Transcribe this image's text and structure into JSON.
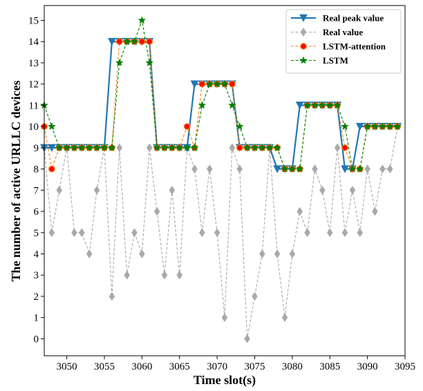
{
  "chart_data": {
    "type": "line",
    "xlabel": "Time slot(s)",
    "ylabel": "The number of active URLLC devices",
    "xlim": [
      3047,
      3095
    ],
    "ylim": [
      -0.8,
      15.7
    ],
    "xticks": [
      3050,
      3055,
      3060,
      3065,
      3070,
      3075,
      3080,
      3085,
      3090,
      3095
    ],
    "yticks": [
      0,
      1,
      2,
      3,
      4,
      5,
      6,
      7,
      8,
      9,
      10,
      11,
      12,
      13,
      14,
      15
    ],
    "grid": false,
    "legend_position": "top-right",
    "x": [
      3047,
      3048,
      3049,
      3050,
      3051,
      3052,
      3053,
      3054,
      3055,
      3056,
      3057,
      3058,
      3059,
      3060,
      3061,
      3062,
      3063,
      3064,
      3065,
      3066,
      3067,
      3068,
      3069,
      3070,
      3071,
      3072,
      3073,
      3074,
      3075,
      3076,
      3077,
      3078,
      3079,
      3080,
      3081,
      3082,
      3083,
      3084,
      3085,
      3086,
      3087,
      3088,
      3089,
      3090,
      3091,
      3092,
      3093,
      3094
    ],
    "series": [
      {
        "name": "Real peak value",
        "color": "#1f77b4",
        "marker": "triangle-down",
        "linestyle": "solid",
        "values": [
          9,
          9,
          9,
          9,
          9,
          9,
          9,
          9,
          9,
          14,
          14,
          14,
          14,
          14,
          14,
          9,
          9,
          9,
          9,
          9,
          12,
          12,
          12,
          12,
          12,
          12,
          9,
          9,
          9,
          9,
          9,
          8,
          8,
          8,
          11,
          11,
          11,
          11,
          11,
          11,
          8,
          8,
          10,
          10,
          10,
          10,
          10,
          10
        ]
      },
      {
        "name": "Real value",
        "color": "#a9a9a9",
        "marker": "diamond",
        "linestyle": "dashed",
        "values": [
          9,
          5,
          7,
          9,
          5,
          5,
          4,
          7,
          9,
          2,
          9,
          3,
          5,
          4,
          9,
          6,
          3,
          7,
          3,
          9,
          8,
          5,
          8,
          5,
          1,
          9,
          8,
          0,
          2,
          4,
          9,
          4,
          1,
          4,
          6,
          5,
          8,
          7,
          5,
          9,
          5,
          7,
          5,
          8,
          6,
          8,
          8,
          10
        ]
      },
      {
        "name": "LSTM-attention",
        "color": "#ff7f0e",
        "marker": "circle",
        "linestyle": "dashed",
        "values": [
          10,
          8,
          9,
          9,
          9,
          9,
          9,
          9,
          9,
          9,
          14,
          14,
          14,
          14,
          14,
          9,
          9,
          9,
          9,
          10,
          9,
          12,
          12,
          12,
          12,
          12,
          9,
          9,
          9,
          9,
          9,
          9,
          8,
          8,
          8,
          11,
          11,
          11,
          11,
          11,
          9,
          8,
          8,
          10,
          10,
          10,
          10,
          10
        ]
      },
      {
        "name": "LSTM",
        "color": "#008000",
        "marker": "star",
        "linestyle": "dashed",
        "values": [
          11,
          10,
          9,
          9,
          9,
          9,
          9,
          9,
          9,
          9,
          13,
          14,
          14,
          15,
          13,
          9,
          9,
          9,
          9,
          9,
          9,
          11,
          12,
          12,
          12,
          11,
          10,
          9,
          9,
          9,
          9,
          9,
          8,
          8,
          8,
          11,
          11,
          11,
          11,
          11,
          10,
          8,
          8,
          10,
          10,
          10,
          10,
          10
        ]
      }
    ]
  }
}
